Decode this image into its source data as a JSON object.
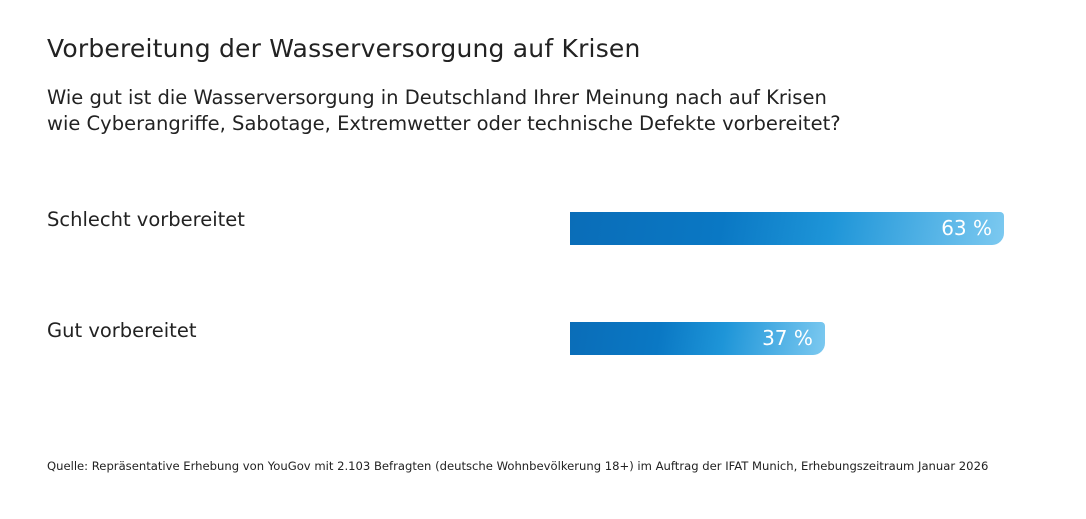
{
  "title": "Vorbereitung der Wasserversorgung auf Krisen",
  "subtitle_lines": [
    "Wie gut ist die Wasserversorgung in Deutschland Ihrer Meinung nach auf Krisen",
    "wie Cyberangriffe, Sabotage, Extremwetter oder technische Defekte vorbereitet?"
  ],
  "source": "Quelle: Repräsentative Erhebung von YouGov mit 2.103 Befragten (deutsche Wohnbevölkerung 18+) im Auftrag der IFAT Munich, Erhebungszeitraum Januar 2026",
  "chart_data": {
    "type": "bar",
    "orientation": "horizontal",
    "categories": [
      "Schlecht vorbereitet",
      "Gut vorbereitet"
    ],
    "values": [
      63,
      37
    ],
    "data_labels": [
      "63 %",
      "37 %"
    ],
    "unit": "%",
    "xlim": [
      0,
      100
    ],
    "grid": false,
    "bar_color_start": "#0a6db8",
    "bar_color_end": "#7cc9f0"
  }
}
